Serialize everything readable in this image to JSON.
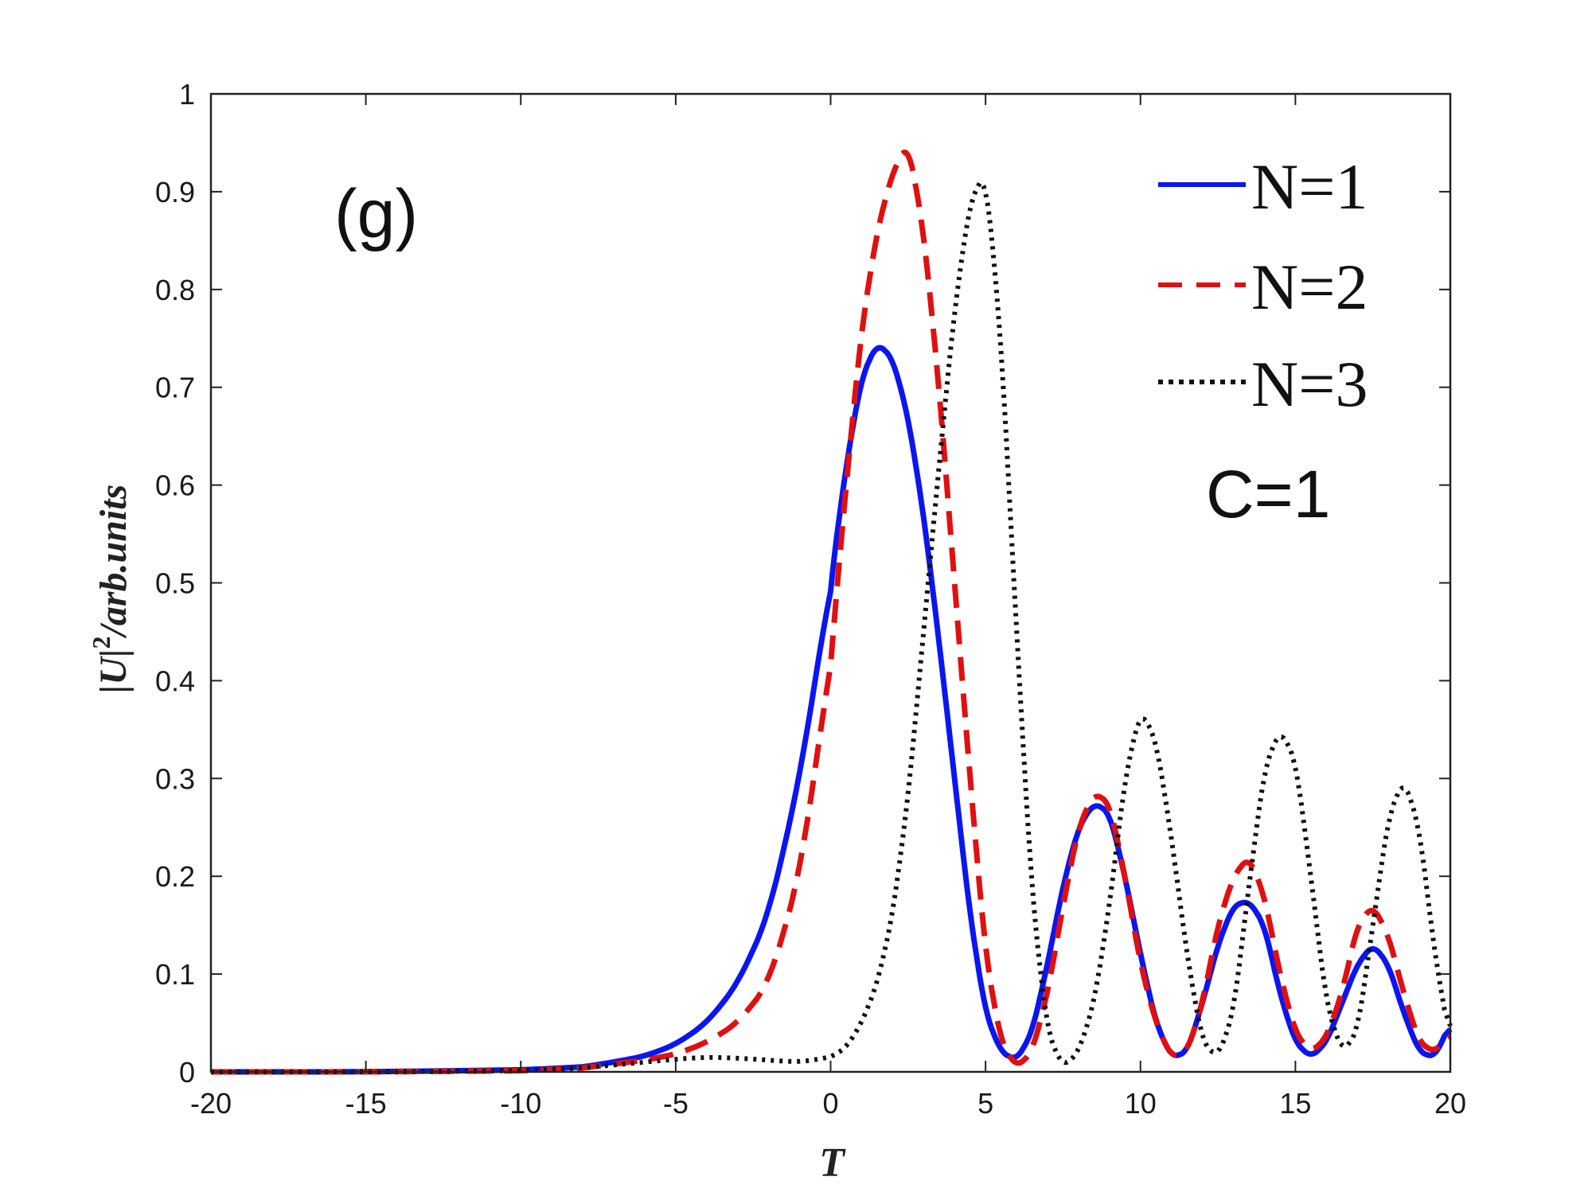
{
  "chart_data": {
    "type": "line",
    "title": "",
    "panel_label": "(g)",
    "annotation": "C=1",
    "xlabel": "T",
    "ylabel": "|U|",
    "ylabel_exp": "2",
    "ylabel_tail": "/arb.units",
    "xlim": [
      -20,
      20
    ],
    "ylim": [
      0,
      1
    ],
    "xticks": [
      -20,
      -15,
      -10,
      -5,
      0,
      5,
      10,
      15,
      20
    ],
    "xtick_labels": [
      "-20",
      "-15",
      "-10",
      "-5",
      "0",
      "5",
      "10",
      "15",
      "20"
    ],
    "yticks": [
      0,
      0.1,
      0.2,
      0.3,
      0.4,
      0.5,
      0.6,
      0.7,
      0.8,
      0.9,
      1
    ],
    "ytick_labels": [
      "0",
      "0.1",
      "0.2",
      "0.3",
      "0.4",
      "0.5",
      "0.6",
      "0.7",
      "0.8",
      "0.9",
      "1"
    ],
    "grid": false,
    "legend_position": "top-right",
    "series": [
      {
        "name": "N=1",
        "color": "#0a16f0",
        "style": "solid",
        "x": [
          -20,
          -15,
          -10,
          -8,
          -7,
          -6,
          -5,
          -4,
          -3,
          -2,
          -1,
          0,
          0.5,
          1,
          1.5,
          2,
          2.5,
          3,
          3.5,
          4,
          4.5,
          5,
          5.5,
          6,
          6.5,
          7,
          7.5,
          8,
          8.5,
          9,
          9.5,
          10,
          10.5,
          11,
          11.5,
          12,
          12.5,
          13,
          13.5,
          14,
          14.5,
          15,
          15.5,
          16,
          16.5,
          17,
          17.5,
          18,
          18.5,
          19,
          19.5,
          20
        ],
        "y": [
          0,
          0,
          0.002,
          0.005,
          0.01,
          0.016,
          0.028,
          0.05,
          0.09,
          0.16,
          0.3,
          0.5,
          0.62,
          0.71,
          0.745,
          0.73,
          0.67,
          0.57,
          0.44,
          0.3,
          0.16,
          0.06,
          0.02,
          0.012,
          0.04,
          0.11,
          0.19,
          0.25,
          0.275,
          0.265,
          0.2,
          0.12,
          0.05,
          0.015,
          0.02,
          0.07,
          0.13,
          0.17,
          0.175,
          0.15,
          0.08,
          0.03,
          0.015,
          0.03,
          0.07,
          0.11,
          0.13,
          0.11,
          0.06,
          0.02,
          0.015,
          0.05
        ]
      },
      {
        "name": "N=2",
        "color": "#e01010",
        "style": "dashed",
        "x": [
          -20,
          -15,
          -10,
          -8,
          -7,
          -6,
          -5,
          -4,
          -3,
          -2,
          -1,
          0,
          0.5,
          1,
          1.5,
          2,
          2.5,
          3,
          3.5,
          4,
          4.5,
          5,
          5.5,
          6,
          6.5,
          7,
          7.5,
          8,
          8.5,
          9,
          9.5,
          10,
          10.5,
          11,
          11.5,
          12,
          12.5,
          13,
          13.5,
          14,
          14.5,
          15,
          15.5,
          16,
          16.5,
          17,
          17.5,
          18,
          18.5,
          19,
          19.5,
          20
        ],
        "y": [
          0,
          0,
          0.001,
          0.004,
          0.008,
          0.012,
          0.018,
          0.03,
          0.05,
          0.09,
          0.2,
          0.42,
          0.6,
          0.76,
          0.86,
          0.92,
          0.95,
          0.86,
          0.7,
          0.5,
          0.3,
          0.12,
          0.03,
          0.005,
          0.02,
          0.08,
          0.17,
          0.25,
          0.285,
          0.275,
          0.2,
          0.11,
          0.05,
          0.015,
          0.02,
          0.07,
          0.15,
          0.2,
          0.22,
          0.18,
          0.1,
          0.04,
          0.02,
          0.035,
          0.08,
          0.15,
          0.17,
          0.14,
          0.08,
          0.03,
          0.02,
          0.04
        ]
      },
      {
        "name": "N=3",
        "color": "#111111",
        "style": "dotted",
        "x": [
          -20,
          -15,
          -10,
          -8,
          -7,
          -6,
          -5,
          -4,
          -3,
          -2,
          -1,
          0,
          0.5,
          1,
          1.5,
          2,
          2.5,
          3,
          3.5,
          4,
          4.5,
          5,
          5.5,
          6,
          6.5,
          7,
          7.5,
          8,
          8.5,
          9,
          9.5,
          10,
          10.5,
          11,
          11.5,
          12,
          12.5,
          13,
          13.5,
          14,
          14.5,
          15,
          15.5,
          16,
          16.5,
          17,
          17.5,
          18,
          18.5,
          19,
          19.5,
          20
        ],
        "y": [
          0,
          0,
          0.001,
          0.004,
          0.007,
          0.01,
          0.013,
          0.015,
          0.014,
          0.012,
          0.01,
          0.015,
          0.025,
          0.05,
          0.09,
          0.16,
          0.28,
          0.45,
          0.62,
          0.78,
          0.89,
          0.92,
          0.75,
          0.45,
          0.18,
          0.04,
          0.005,
          0.02,
          0.07,
          0.17,
          0.3,
          0.37,
          0.34,
          0.24,
          0.12,
          0.03,
          0.015,
          0.06,
          0.19,
          0.31,
          0.35,
          0.32,
          0.2,
          0.07,
          0.02,
          0.04,
          0.15,
          0.26,
          0.3,
          0.25,
          0.12,
          0.03
        ]
      }
    ]
  }
}
